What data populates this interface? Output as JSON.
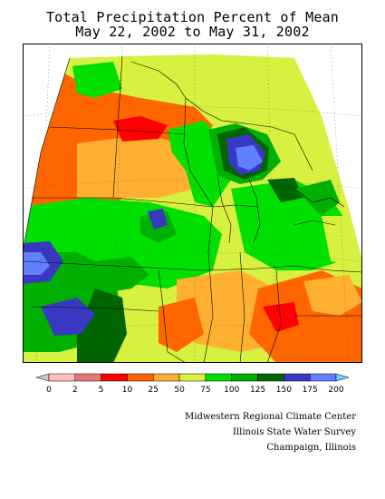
{
  "title": {
    "line1": "Total Precipitation Percent of Mean",
    "line2": "May 22, 2002 to May 31, 2002"
  },
  "legend": {
    "labels": [
      "0",
      "2",
      "5",
      "10",
      "25",
      "50",
      "75",
      "100",
      "125",
      "150",
      "175",
      "200"
    ],
    "colors": [
      "#c8c8c8",
      "#ffc0c0",
      "#e87878",
      "#ff0000",
      "#ff6600",
      "#ffb030",
      "#d8f040",
      "#00e000",
      "#00b000",
      "#006400",
      "#3838c0",
      "#6080ff",
      "#70d0ff"
    ]
  },
  "credits": {
    "line1": "Midwestern Regional Climate Center",
    "line2": "Illinois State Water Survey",
    "line3": "Champaign, Illinois"
  }
}
